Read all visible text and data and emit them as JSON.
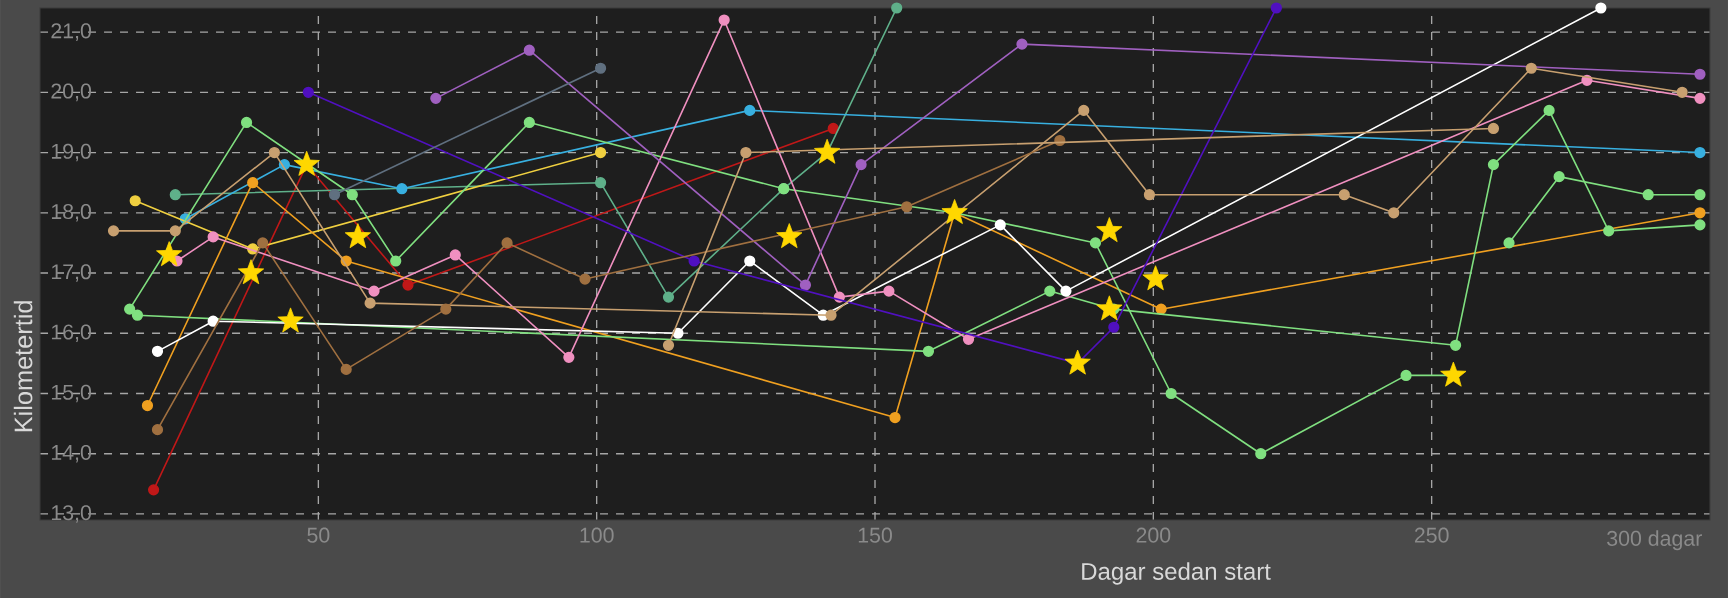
{
  "chart_data": {
    "type": "line",
    "xlabel": "Dagar sedan start",
    "ylabel": "Kilometertid",
    "xlim": [
      0,
      300
    ],
    "ylim": [
      12.9,
      21.4
    ],
    "xticks": [
      50,
      100,
      150,
      200,
      250,
      {
        "value": 300,
        "label": "300 dagar"
      }
    ],
    "yticks": [
      {
        "value": 13,
        "label": "13,0"
      },
      {
        "value": 14,
        "label": "14,0"
      },
      {
        "value": 15,
        "label": "15,0"
      },
      {
        "value": 16,
        "label": "16,0"
      },
      {
        "value": 17,
        "label": "17,0"
      },
      {
        "value": 18,
        "label": "18,0"
      },
      {
        "value": 19,
        "label": "19,0"
      },
      {
        "value": 20,
        "label": "20,0"
      },
      {
        "value": 21,
        "label": "21,0"
      }
    ],
    "grid": true,
    "marker": "circle",
    "line_style": "solid",
    "series": [
      {
        "color": "#c01818",
        "x": [
          20.4,
          47.9,
          66.1,
          142.5
        ],
        "values": [
          13.4,
          18.8,
          16.8,
          19.4
        ]
      },
      {
        "color": "#5fb08a",
        "x": [
          24.3,
          100.7,
          112.9,
          133.6,
          141.4,
          153.9
        ],
        "values": [
          18.3,
          18.5,
          16.6,
          18.4,
          19.0,
          21.4
        ]
      },
      {
        "color": "#38b0e0",
        "x": [
          26.1,
          43.9,
          65,
          127.5,
          298.2
        ],
        "values": [
          17.9,
          18.8,
          18.4,
          19.7,
          19.0
        ]
      },
      {
        "color": "#f0d040",
        "x": [
          17.1,
          38.2,
          100.7
        ],
        "values": [
          18.2,
          17.4,
          19.0
        ]
      },
      {
        "color": "#f0a020",
        "x": [
          19.3,
          38.2,
          55,
          153.6,
          164.3,
          201.4,
          298.2
        ],
        "values": [
          14.8,
          18.5,
          17.2,
          14.6,
          18.0,
          16.4,
          18.0
        ]
      },
      {
        "color": "#80e080",
        "x": [
          16.1,
          37.1,
          56.1,
          63.9,
          87.9,
          133.6,
          164.3,
          189.6,
          203.2,
          219.3,
          245.4,
          253.9
        ],
        "values": [
          16.4,
          19.5,
          18.3,
          17.2,
          19.5,
          18.4,
          18.0,
          17.5,
          15.0,
          14.0,
          15.3,
          15.3
        ]
      },
      {
        "color": "#80e080",
        "x": [
          17.5,
          159.6,
          181.4,
          192.9,
          254.3,
          261.1,
          271.1,
          281.8,
          298.2
        ],
        "values": [
          16.3,
          15.7,
          16.7,
          16.4,
          15.8,
          18.8,
          19.7,
          17.7,
          17.8
        ]
      },
      {
        "color": "#80e080",
        "x": [
          263.9,
          272.9,
          288.9,
          298.2
        ],
        "values": [
          17.5,
          18.6,
          18.3,
          18.3
        ]
      },
      {
        "color": "#ffffff",
        "x": [
          21.1,
          31.1,
          114.6,
          127.5,
          140.7,
          172.5,
          184.3,
          280.4
        ],
        "values": [
          15.7,
          16.2,
          16.0,
          17.2,
          16.3,
          17.8,
          16.7,
          21.4
        ]
      },
      {
        "color": "#f090c0",
        "x": [
          24.6,
          31.1,
          60,
          74.6,
          95,
          122.9,
          143.6,
          152.5,
          166.8,
          277.9,
          298.2
        ],
        "values": [
          17.2,
          17.6,
          16.7,
          17.3,
          15.6,
          21.2,
          16.6,
          16.7,
          15.9,
          20.2,
          19.9
        ]
      },
      {
        "color": "#a060c0",
        "x": [
          71.1,
          87.9,
          137.5,
          147.5,
          176.4,
          298.2
        ],
        "values": [
          19.9,
          20.7,
          16.8,
          18.8,
          20.8,
          20.3
        ]
      },
      {
        "color": "#5010c0",
        "x": [
          48.2,
          117.5,
          186.4,
          192.9,
          222.1
        ],
        "values": [
          20.0,
          17.2,
          15.5,
          16.1,
          21.4
        ]
      },
      {
        "color": "#c8a070",
        "x": [
          13.2,
          24.3,
          42.1,
          59.3,
          142.1,
          187.5,
          199.3,
          234.3,
          243.2,
          267.9,
          295
        ],
        "values": [
          17.7,
          17.7,
          19.0,
          16.5,
          16.3,
          19.7,
          18.3,
          18.3,
          18.0,
          20.4,
          20.0
        ]
      },
      {
        "color": "#a07040",
        "x": [
          21.1,
          40,
          55,
          72.9,
          83.9,
          97.9,
          155.7,
          183.2
        ],
        "values": [
          14.4,
          17.5,
          15.4,
          16.4,
          17.5,
          16.9,
          18.1,
          19.2
        ]
      },
      {
        "color": "#c8a070",
        "x": [
          112.9,
          126.8,
          261.1
        ],
        "values": [
          15.8,
          19.0,
          19.4
        ]
      },
      {
        "color": "#607080",
        "x": [
          52.9,
          100.7
        ],
        "values": [
          18.3,
          20.4
        ]
      },
      {
        "type": "scatter",
        "marker": "star",
        "color": "#ffd700",
        "x": [
          23.2,
          37.9,
          47.9,
          45,
          57.1,
          134.6,
          141.4,
          164.3,
          192.1,
          186.4,
          192.1,
          200.4,
          253.9
        ],
        "values": [
          17.3,
          17.0,
          18.8,
          16.2,
          17.6,
          17.6,
          19.0,
          18.0,
          17.7,
          15.5,
          16.4,
          16.9,
          15.3
        ]
      }
    ]
  }
}
